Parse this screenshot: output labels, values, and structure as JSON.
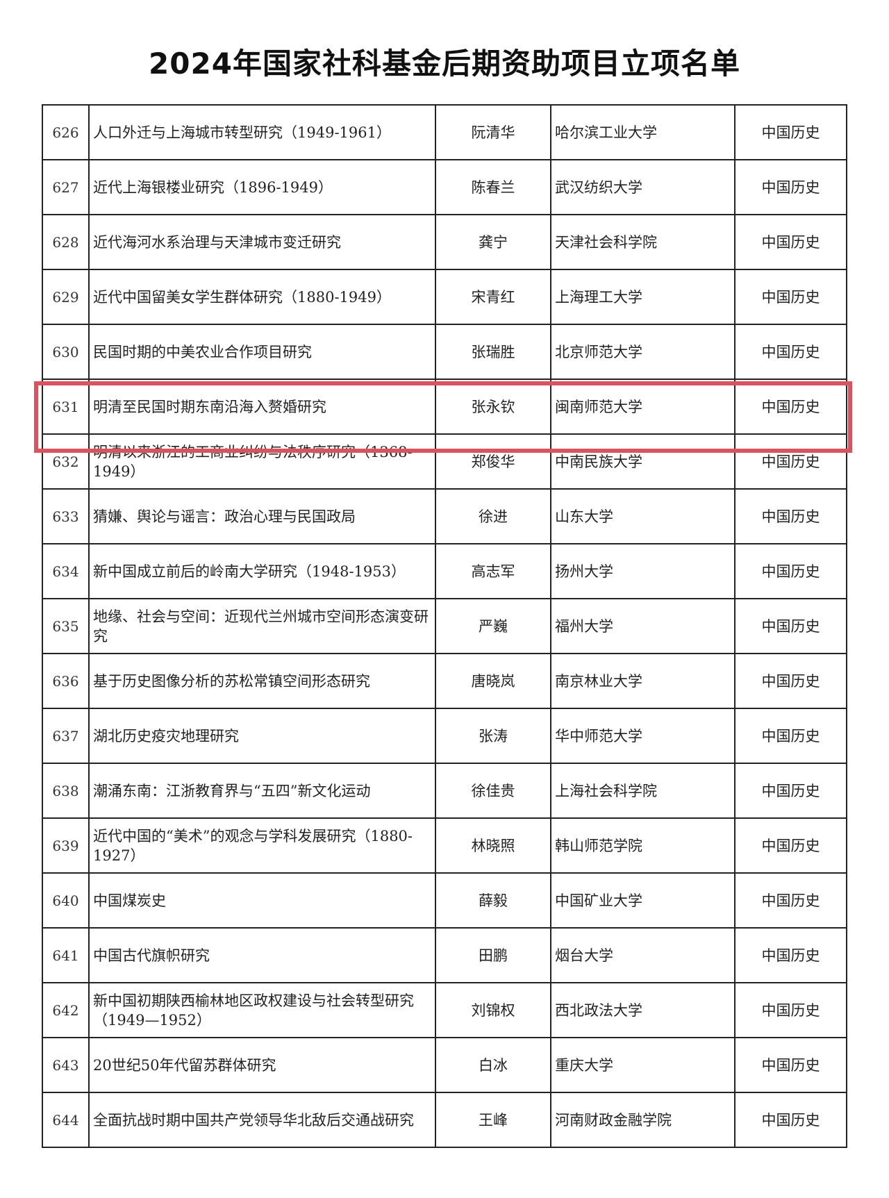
{
  "title": "2024年国家社科基金后期资助项目立项名单",
  "highlight_color": "#d9545e",
  "highlighted_row": "631",
  "rows": [
    {
      "no": "626",
      "project": "人口外迁与上海城市转型研究（1949-1961）",
      "leader": "阮清华",
      "unit": "哈尔滨工业大学",
      "discipline": "中国历史"
    },
    {
      "no": "627",
      "project": "近代上海银楼业研究（1896-1949）",
      "leader": "陈春兰",
      "unit": "武汉纺织大学",
      "discipline": "中国历史"
    },
    {
      "no": "628",
      "project": "近代海河水系治理与天津城市变迁研究",
      "leader": "龚宁",
      "unit": "天津社会科学院",
      "discipline": "中国历史"
    },
    {
      "no": "629",
      "project": "近代中国留美女学生群体研究（1880-1949）",
      "leader": "宋青红",
      "unit": "上海理工大学",
      "discipline": "中国历史"
    },
    {
      "no": "630",
      "project": "民国时期的中美农业合作项目研究",
      "leader": "张瑞胜",
      "unit": "北京师范大学",
      "discipline": "中国历史"
    },
    {
      "no": "631",
      "project": "明清至民国时期东南沿海入赘婚研究",
      "leader": "张永钦",
      "unit": "闽南师范大学",
      "discipline": "中国历史"
    },
    {
      "no": "632",
      "project": "明清以来浙江的工商业纠纷与法秩序研究（1368-1949）",
      "leader": "郑俊华",
      "unit": "中南民族大学",
      "discipline": "中国历史"
    },
    {
      "no": "633",
      "project": "猜嫌、舆论与谣言：政治心理与民国政局",
      "leader": "徐进",
      "unit": "山东大学",
      "discipline": "中国历史"
    },
    {
      "no": "634",
      "project": "新中国成立前后的岭南大学研究（1948-1953）",
      "leader": "高志军",
      "unit": "扬州大学",
      "discipline": "中国历史"
    },
    {
      "no": "635",
      "project": "地缘、社会与空间：近现代兰州城市空间形态演变研究",
      "leader": "严巍",
      "unit": "福州大学",
      "discipline": "中国历史"
    },
    {
      "no": "636",
      "project": "基于历史图像分析的苏松常镇空间形态研究",
      "leader": "唐晓岚",
      "unit": "南京林业大学",
      "discipline": "中国历史"
    },
    {
      "no": "637",
      "project": "湖北历史疫灾地理研究",
      "leader": "张涛",
      "unit": "华中师范大学",
      "discipline": "中国历史"
    },
    {
      "no": "638",
      "project": "潮涌东南：江浙教育界与“五四”新文化运动",
      "leader": "徐佳贵",
      "unit": "上海社会科学院",
      "discipline": "中国历史"
    },
    {
      "no": "639",
      "project": "近代中国的“美术”的观念与学科发展研究（1880-1927）",
      "leader": "林晓照",
      "unit": "韩山师范学院",
      "discipline": "中国历史"
    },
    {
      "no": "640",
      "project": "中国煤炭史",
      "leader": "薛毅",
      "unit": "中国矿业大学",
      "discipline": "中国历史"
    },
    {
      "no": "641",
      "project": "中国古代旗帜研究",
      "leader": "田鹏",
      "unit": "烟台大学",
      "discipline": "中国历史"
    },
    {
      "no": "642",
      "project": "新中国初期陕西榆林地区政权建设与社会转型研究（1949—1952）",
      "leader": "刘锦权",
      "unit": "西北政法大学",
      "discipline": "中国历史"
    },
    {
      "no": "643",
      "project": "20世纪50年代留苏群体研究",
      "leader": "白冰",
      "unit": "重庆大学",
      "discipline": "中国历史"
    },
    {
      "no": "644",
      "project": "全面抗战时期中国共产党领导华北敌后交通战研究",
      "leader": "王峰",
      "unit": "河南财政金融学院",
      "discipline": "中国历史"
    }
  ]
}
